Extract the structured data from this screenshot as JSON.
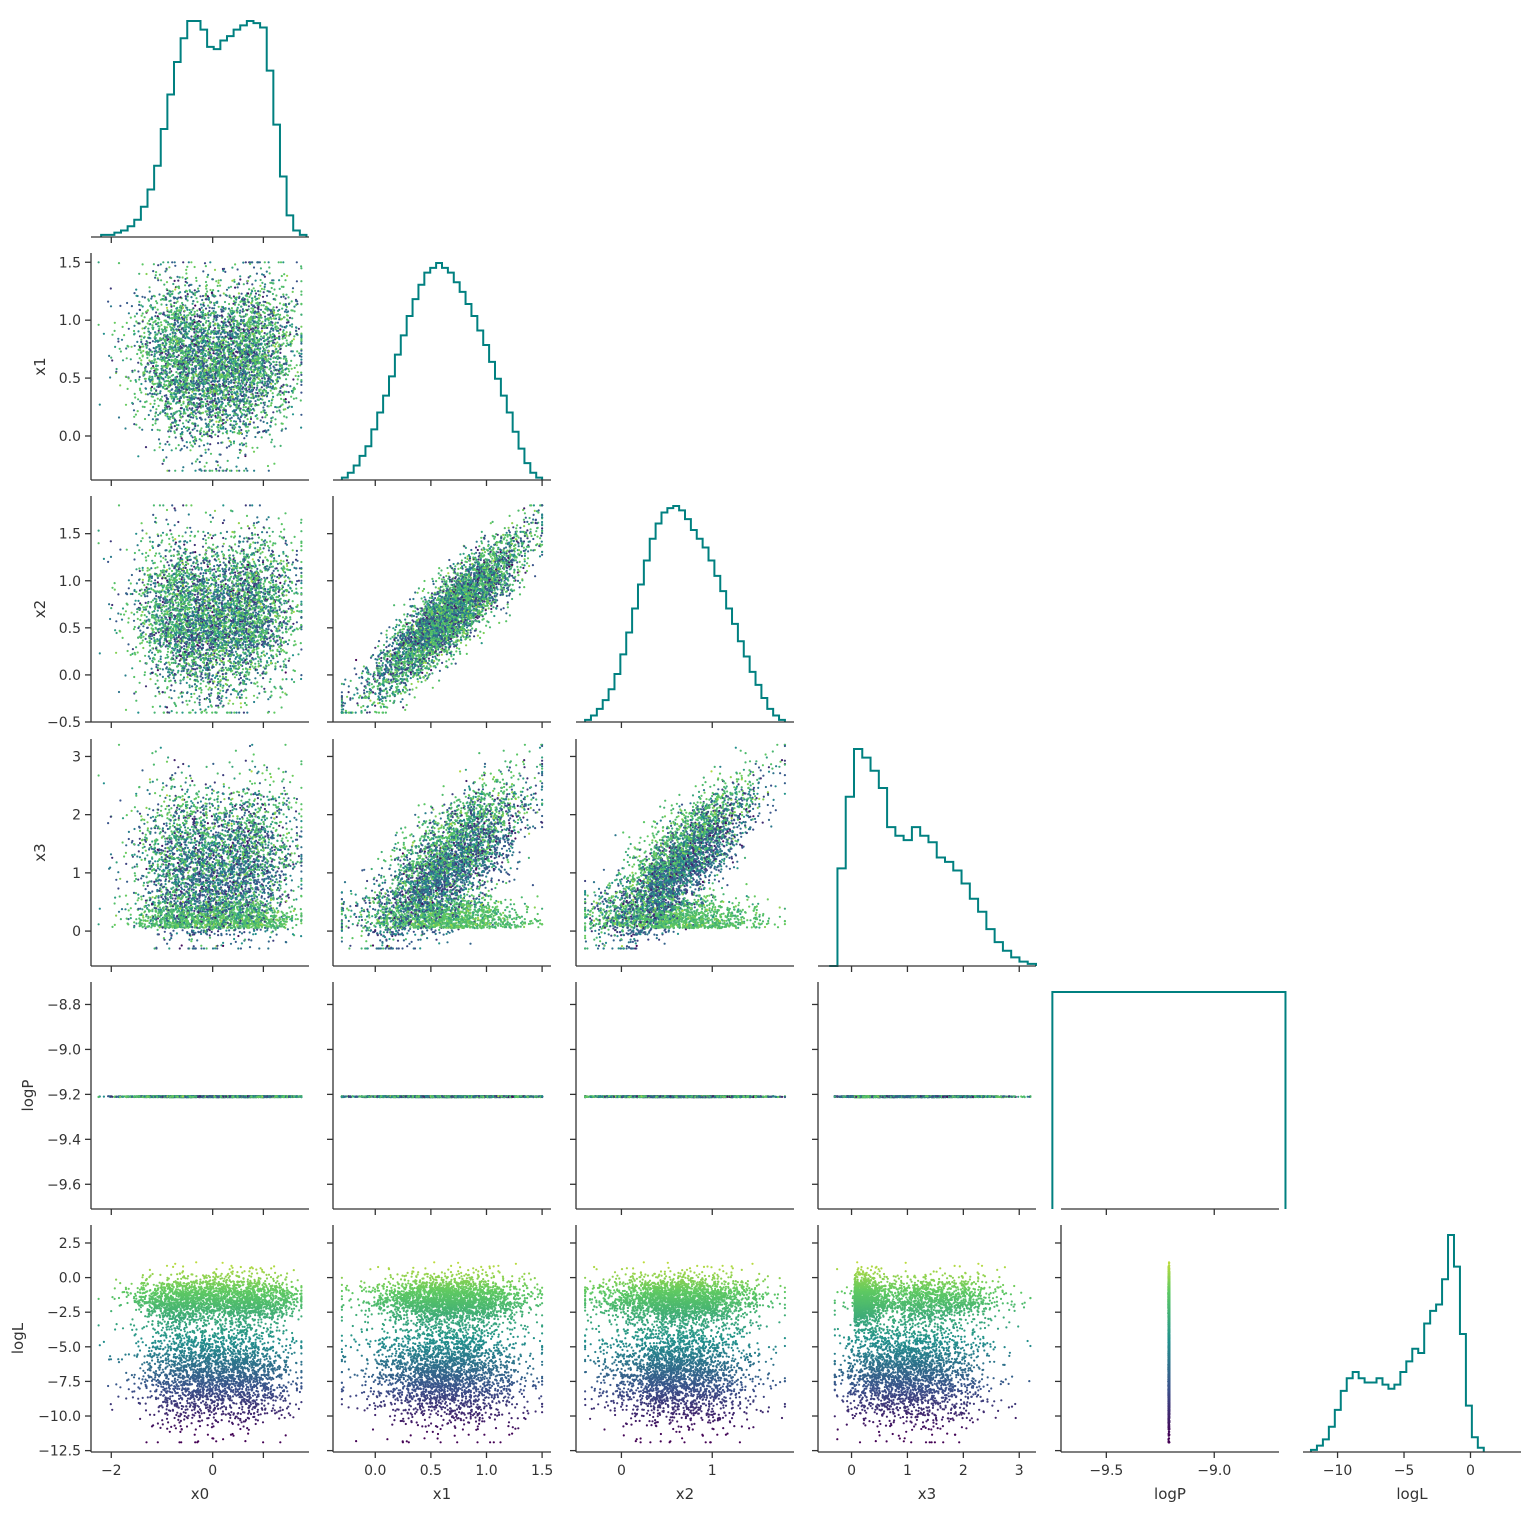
{
  "chart_data": {
    "type": "scatter",
    "layout": "corner-plot",
    "variables": [
      "x0",
      "x1",
      "x2",
      "x3",
      "logP",
      "logL"
    ],
    "xlabels": [
      "x0",
      "x1",
      "x2",
      "x3",
      "logP",
      "logL"
    ],
    "ylabels": [
      "",
      "x1",
      "x2",
      "x3",
      "logP",
      "logL"
    ],
    "ranges": {
      "x0": [
        -2.4,
        1.9
      ],
      "x1": [
        -0.38,
        1.58
      ],
      "x2": [
        -0.5,
        1.9
      ],
      "x3": [
        -0.6,
        3.3
      ],
      "logP": [
        -9.71,
        -8.7
      ],
      "logL": [
        -12.6,
        3.8
      ]
    },
    "ticks": {
      "x0": [
        -2,
        0
      ],
      "x1": [
        0.0,
        0.5,
        1.0,
        1.5
      ],
      "x2": [
        -0.5,
        0.0,
        0.5,
        1.0,
        1.5
      ],
      "x3": [
        0,
        1,
        2,
        3
      ],
      "logP": [
        -9.6,
        -9.4,
        -9.2,
        -9.0,
        -8.8
      ],
      "logL": [
        -12.5,
        -10.0,
        -7.5,
        -5.0,
        -2.5,
        0.0,
        2.5
      ]
    },
    "tick_labels": {
      "x0": [
        "−2",
        "0"
      ],
      "x1": [
        "0.0",
        "0.5",
        "1.0",
        "1.5"
      ],
      "x2": [
        "−0.5",
        "0.0",
        "0.5",
        "1.0",
        "1.5"
      ],
      "x3": [
        "0",
        "1",
        "2",
        "3"
      ],
      "logP": [
        "−9.6",
        "−9.4",
        "−9.2",
        "−9.0",
        "−8.8"
      ],
      "logL": [
        "−12.5",
        "−10.0",
        "−7.5",
        "−5.0",
        "−2.5",
        "0.0",
        "2.5"
      ]
    },
    "x_tick_overrides": {
      "x0": {
        "ticks": [
          -2,
          0,
          1
        ],
        "labels": [
          "−2",
          "0",
          ""
        ]
      },
      "x2": {
        "ticks": [
          0,
          1
        ],
        "labels": [
          "0",
          "1"
        ]
      },
      "logP": {
        "ticks": [
          -9.5,
          -9.0
        ],
        "labels": [
          "−9.5",
          "−9.0"
        ]
      },
      "logL": {
        "ticks": [
          -10,
          -5,
          0
        ],
        "labels": [
          "−10",
          "−5",
          "0"
        ]
      }
    },
    "logP_value": -9.21,
    "n_points": 5000,
    "histograms": {
      "x0": {
        "edges_start": -2.2,
        "edges_end": 1.85,
        "counts": [
          1,
          1,
          2,
          3,
          5,
          8,
          14,
          22,
          33,
          50,
          66,
          81,
          92,
          100,
          100,
          96,
          88,
          87,
          91,
          93,
          96,
          98,
          100,
          99,
          97,
          77,
          52,
          28,
          10,
          3,
          1
        ]
      },
      "x1": {
        "edges_start": -0.3,
        "edges_end": 1.5,
        "counts": [
          1,
          3,
          6,
          10,
          14,
          21,
          28,
          35,
          43,
          52,
          60,
          68,
          75,
          81,
          86,
          88,
          90,
          88,
          86,
          82,
          78,
          73,
          68,
          62,
          56,
          49,
          42,
          35,
          28,
          20,
          13,
          7,
          3,
          1
        ]
      },
      "x2": {
        "edges_start": -0.4,
        "edges_end": 1.8,
        "counts": [
          1,
          3,
          6,
          10,
          15,
          22,
          31,
          41,
          52,
          63,
          74,
          84,
          91,
          96,
          98,
          99,
          97,
          93,
          88,
          84,
          80,
          74,
          67,
          60,
          52,
          45,
          37,
          30,
          23,
          17,
          11,
          6,
          3,
          1
        ]
      },
      "x3": {
        "edges_start": -0.4,
        "edges_end": 3.3,
        "counts": [
          0,
          45,
          78,
          100,
          96,
          90,
          82,
          64,
          60,
          58,
          64,
          60,
          57,
          50,
          48,
          44,
          38,
          31,
          25,
          17,
          11,
          7,
          4,
          2,
          1
        ]
      },
      "logP": {
        "edges_start": -9.75,
        "edges_end": -8.67,
        "counts": [
          100
        ]
      },
      "logL": {
        "edges_start": -12.0,
        "edges_end": 1.0,
        "counts": [
          1,
          3,
          6,
          12,
          20,
          29,
          35,
          38,
          35,
          33,
          33,
          35,
          32,
          30,
          32,
          38,
          43,
          49,
          47,
          61,
          67,
          70,
          82,
          103,
          88,
          56,
          22,
          7,
          2
        ]
      }
    }
  },
  "colors": {
    "hist_line": "#008080",
    "axis": "#333333",
    "colormap": "viridis",
    "cmap_stops": [
      "#440154",
      "#3b528b",
      "#21918c",
      "#5ec962",
      "#fde725"
    ]
  }
}
